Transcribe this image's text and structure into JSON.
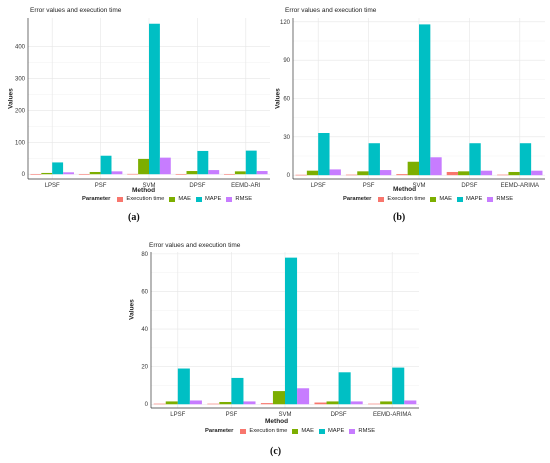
{
  "colors": {
    "execution_time": "#f8766d",
    "mae": "#7cae00",
    "mape": "#00bfc4",
    "rmse": "#c77cff",
    "grid": "#e6e6e6",
    "axis": "#333333"
  },
  "legend": {
    "title": "Parameter",
    "items": [
      "Execution time",
      "MAE",
      "MAPE",
      "RMSE"
    ]
  },
  "chart_data": [
    {
      "type": "bar",
      "panel_label": "(a)",
      "title": "Error values and execution time",
      "xlabel": "Method",
      "ylabel": "Values",
      "ylim": [
        -15,
        490
      ],
      "yticks": [
        0,
        100,
        200,
        300,
        400
      ],
      "grid": true,
      "legend_position": "bottom",
      "categories": [
        "LPSF",
        "PSF",
        "SVM",
        "DPSF",
        "EEMD-ARI"
      ],
      "series": [
        {
          "name": "Execution time",
          "values": [
            0.5,
            0.5,
            1,
            0.5,
            0.5
          ]
        },
        {
          "name": "MAE",
          "values": [
            4,
            7,
            48,
            10,
            9
          ]
        },
        {
          "name": "MAPE",
          "values": [
            37,
            58,
            472,
            73,
            74
          ]
        },
        {
          "name": "RMSE",
          "values": [
            6,
            9,
            52,
            13,
            10
          ]
        }
      ]
    },
    {
      "type": "bar",
      "panel_label": "(b)",
      "title": "Error values and execution time",
      "xlabel": "Method",
      "ylabel": "Values",
      "ylim": [
        -3,
        123
      ],
      "yticks": [
        0,
        30,
        60,
        90,
        120
      ],
      "grid": true,
      "legend_position": "bottom",
      "categories": [
        "LPSF",
        "PSF",
        "SVM",
        "DPSF",
        "EEMD-ARIMA"
      ],
      "series": [
        {
          "name": "Execution time",
          "values": [
            0.3,
            0.4,
            0.8,
            2.5,
            0.4
          ]
        },
        {
          "name": "MAE",
          "values": [
            3.5,
            3,
            10.5,
            3,
            2.5
          ]
        },
        {
          "name": "MAPE",
          "values": [
            33,
            25,
            118,
            25,
            25
          ]
        },
        {
          "name": "RMSE",
          "values": [
            4.5,
            4,
            14,
            3.5,
            3.5
          ]
        }
      ]
    },
    {
      "type": "bar",
      "panel_label": "(c)",
      "title": "Error values and execution time",
      "xlabel": "Method",
      "ylabel": "Values",
      "ylim": [
        -2,
        81
      ],
      "yticks": [
        0,
        20,
        40,
        60,
        80
      ],
      "grid": true,
      "legend_position": "bottom",
      "categories": [
        "LPSF",
        "PSF",
        "SVM",
        "DPSF",
        "EEMD-ARIMA"
      ],
      "series": [
        {
          "name": "Execution time",
          "values": [
            0.3,
            0.3,
            0.6,
            0.9,
            0.3
          ]
        },
        {
          "name": "MAE",
          "values": [
            1.5,
            1.2,
            7,
            1.5,
            1.5
          ]
        },
        {
          "name": "MAPE",
          "values": [
            19,
            14,
            78,
            17,
            19.5
          ]
        },
        {
          "name": "RMSE",
          "values": [
            2,
            1.5,
            8.5,
            1.5,
            2
          ]
        }
      ]
    }
  ]
}
